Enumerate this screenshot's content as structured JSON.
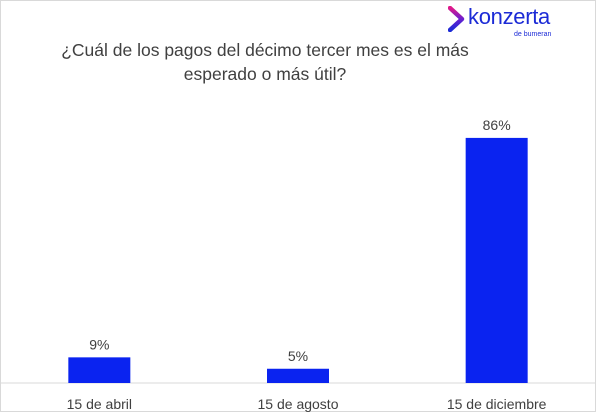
{
  "brand": {
    "name": "konzerta",
    "sub": "de bumeran",
    "logo_icon": "konzerta-chevron-icon",
    "colors": [
      "#e0198a",
      "#6a1fd0",
      "#1c2bd6"
    ]
  },
  "chart_data": {
    "type": "bar",
    "title": "¿Cuál de los pagos del décimo tercer mes es el más esperado o más útil?",
    "categories": [
      "15 de abril",
      "15 de agosto",
      "15 de diciembre"
    ],
    "values": [
      9,
      5,
      86
    ],
    "data_labels": [
      "9%",
      "5%",
      "86%"
    ],
    "unit": "%",
    "ylim": [
      0,
      100
    ],
    "grid": false,
    "legend": "none",
    "bar_color": "#0a23f0"
  }
}
